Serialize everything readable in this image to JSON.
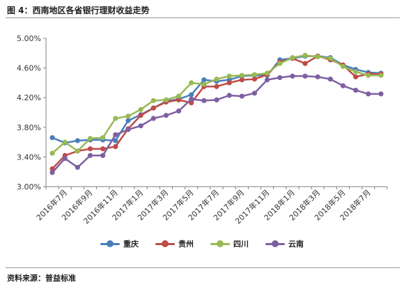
{
  "figure": {
    "title": "图 4：西南地区各省银行理财收益走势",
    "source": "资料来源：普益标准"
  },
  "chart_data": {
    "type": "line",
    "title": "",
    "xlabel": "",
    "ylabel": "",
    "ylim": [
      3.0,
      5.0
    ],
    "y_ticks": [
      "3.00%",
      "3.40%",
      "3.80%",
      "4.20%",
      "4.60%",
      "5.00%"
    ],
    "y_tick_values": [
      3.0,
      3.4,
      3.8,
      4.2,
      4.6,
      5.0
    ],
    "x": [
      "2016年6月",
      "2016年7月",
      "2016年8月",
      "2016年9月",
      "2016年10月",
      "2016年11月",
      "2016年12月",
      "2017年1月",
      "2017年2月",
      "2017年3月",
      "2017年4月",
      "2017年5月",
      "2017年6月",
      "2017年7月",
      "2017年8月",
      "2017年9月",
      "2017年10月",
      "2017年11月",
      "2017年12月",
      "2018年1月",
      "2018年2月",
      "2018年3月",
      "2018年4月",
      "2018年5月",
      "2018年6月",
      "2018年7月",
      "2018年8月"
    ],
    "x_tick_labels": [
      "2016年7月",
      "2016年9月",
      "2016年11月",
      "2017年1月",
      "2017年3月",
      "2017年5月",
      "2017年7月",
      "2017年9月",
      "2017年11月",
      "2018年1月",
      "2018年3月",
      "2018年5月",
      "2018年7月"
    ],
    "grid": false,
    "legend_position": "bottom",
    "series": [
      {
        "name": "重庆",
        "color": "#4a7ebb",
        "values": [
          3.66,
          3.59,
          3.62,
          3.63,
          3.63,
          3.62,
          3.89,
          3.97,
          4.06,
          4.15,
          4.18,
          4.24,
          4.44,
          4.42,
          4.44,
          4.49,
          4.5,
          4.5,
          4.71,
          4.73,
          4.76,
          4.76,
          4.74,
          4.64,
          4.58,
          4.54,
          4.53
        ]
      },
      {
        "name": "贵州",
        "color": "#be4b48",
        "values": [
          3.24,
          3.42,
          3.48,
          3.51,
          3.51,
          3.54,
          3.78,
          3.96,
          4.06,
          4.14,
          4.17,
          4.13,
          4.35,
          4.35,
          4.4,
          4.44,
          4.45,
          4.51,
          4.68,
          4.73,
          4.66,
          4.76,
          4.71,
          4.64,
          4.48,
          4.52,
          4.52
        ]
      },
      {
        "name": "四川",
        "color": "#98b954",
        "values": [
          3.45,
          3.6,
          3.48,
          3.65,
          3.66,
          3.92,
          3.95,
          4.04,
          4.16,
          4.17,
          4.22,
          4.4,
          4.38,
          4.45,
          4.49,
          4.5,
          4.51,
          4.53,
          4.66,
          4.74,
          4.77,
          4.75,
          4.73,
          4.62,
          4.55,
          4.5,
          4.5
        ]
      },
      {
        "name": "云南",
        "color": "#7d60a0",
        "values": [
          3.19,
          3.38,
          3.26,
          3.42,
          3.42,
          3.7,
          3.77,
          3.82,
          3.92,
          3.96,
          4.02,
          4.18,
          4.16,
          4.17,
          4.23,
          4.22,
          4.26,
          4.44,
          4.47,
          4.49,
          4.49,
          4.48,
          4.45,
          4.36,
          4.3,
          4.25,
          4.25
        ]
      }
    ]
  }
}
